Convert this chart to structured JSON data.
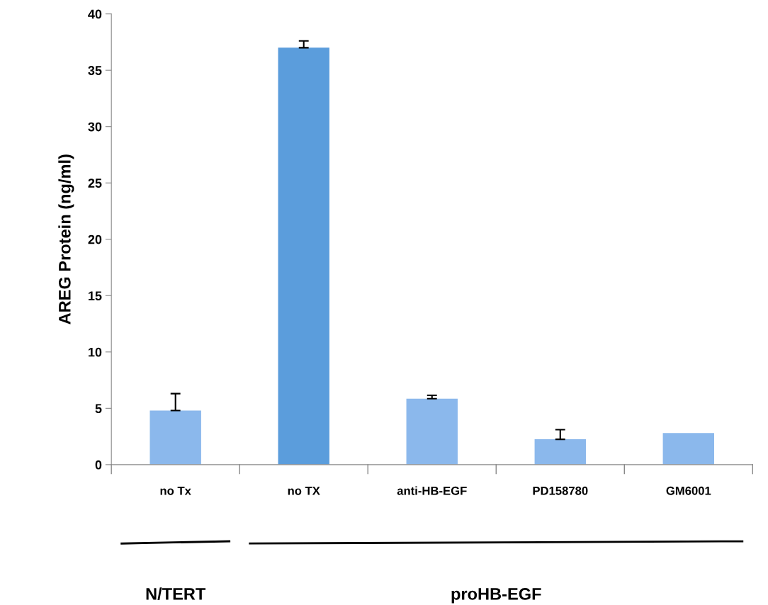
{
  "chart_data": {
    "type": "bar",
    "ylabel": "AREG Protein (ng/ml)",
    "categories": [
      "no Tx",
      "no TX",
      "anti-HB-EGF",
      "PD158780",
      "GM6001"
    ],
    "values": [
      4.8,
      37.0,
      5.85,
      2.25,
      2.8
    ],
    "errors": [
      [
        4.8,
        6.3
      ],
      [
        37.0,
        37.6
      ],
      [
        5.85,
        6.15
      ],
      [
        2.25,
        3.1
      ],
      null
    ],
    "colors": [
      "#8bb8ec",
      "#5b9ddc",
      "#8bb8ec",
      "#8bb8ec",
      "#8bb8ec"
    ],
    "ylim": [
      0,
      40
    ],
    "yticks": [
      0,
      5,
      10,
      15,
      20,
      25,
      30,
      35,
      40
    ],
    "annotations": [
      "N/TERT",
      "proHB-EGF"
    ],
    "grid": false,
    "legend": false
  }
}
